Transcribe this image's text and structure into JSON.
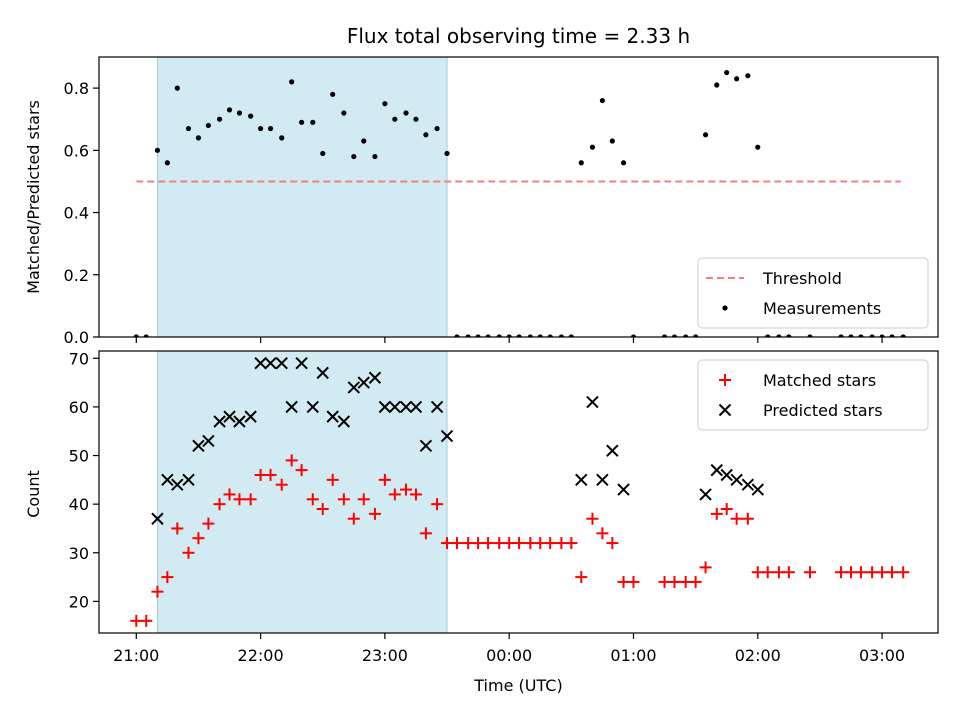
{
  "chart_data": {
    "title": "Flux total observing time = 2.33 h",
    "xlabel": "Time (UTC)",
    "x_tick_labels": [
      "21:00",
      "22:00",
      "23:00",
      "00:00",
      "01:00",
      "02:00",
      "03:00"
    ],
    "x_tick_hours": [
      21,
      22,
      23,
      24,
      25,
      26,
      27
    ],
    "xlim": [
      20.7,
      27.45
    ],
    "shaded_interval": {
      "start": 21.17,
      "end": 23.5,
      "color": "#add8e6"
    },
    "panels": [
      {
        "type": "scatter",
        "ylabel": "Matched/Predicted stars",
        "ylim": [
          0,
          0.9
        ],
        "yticks": [
          0.0,
          0.2,
          0.4,
          0.6,
          0.8
        ],
        "ytick_labels": [
          "0.0",
          "0.2",
          "0.4",
          "0.6",
          "0.8"
        ],
        "legend_position": "lower-right",
        "threshold": {
          "name": "Threshold",
          "value": 0.5,
          "x_range": [
            21.0,
            27.15
          ],
          "color": "#f08080"
        },
        "series": [
          {
            "name": "Measurements",
            "marker": "dot",
            "color": "#000000",
            "points": [
              [
                21.0,
                0.0
              ],
              [
                21.08,
                0.0
              ],
              [
                21.17,
                0.6
              ],
              [
                21.25,
                0.56
              ],
              [
                21.33,
                0.8
              ],
              [
                21.42,
                0.67
              ],
              [
                21.5,
                0.64
              ],
              [
                21.58,
                0.68
              ],
              [
                21.67,
                0.7
              ],
              [
                21.75,
                0.73
              ],
              [
                21.83,
                0.72
              ],
              [
                21.92,
                0.71
              ],
              [
                22.0,
                0.67
              ],
              [
                22.08,
                0.67
              ],
              [
                22.17,
                0.64
              ],
              [
                22.25,
                0.82
              ],
              [
                22.33,
                0.69
              ],
              [
                22.42,
                0.69
              ],
              [
                22.5,
                0.59
              ],
              [
                22.58,
                0.78
              ],
              [
                22.67,
                0.72
              ],
              [
                22.75,
                0.58
              ],
              [
                22.83,
                0.63
              ],
              [
                22.92,
                0.58
              ],
              [
                23.0,
                0.75
              ],
              [
                23.08,
                0.7
              ],
              [
                23.17,
                0.72
              ],
              [
                23.25,
                0.7
              ],
              [
                23.33,
                0.65
              ],
              [
                23.42,
                0.67
              ],
              [
                23.5,
                0.59
              ],
              [
                23.58,
                0.0
              ],
              [
                23.67,
                0.0
              ],
              [
                23.75,
                0.0
              ],
              [
                23.83,
                0.0
              ],
              [
                23.92,
                0.0
              ],
              [
                24.0,
                0.0
              ],
              [
                24.08,
                0.0
              ],
              [
                24.17,
                0.0
              ],
              [
                24.25,
                0.0
              ],
              [
                24.33,
                0.0
              ],
              [
                24.42,
                0.0
              ],
              [
                24.5,
                0.0
              ],
              [
                24.58,
                0.56
              ],
              [
                24.67,
                0.61
              ],
              [
                24.75,
                0.76
              ],
              [
                24.83,
                0.63
              ],
              [
                24.92,
                0.56
              ],
              [
                25.0,
                0.0
              ],
              [
                25.25,
                0.0
              ],
              [
                25.33,
                0.0
              ],
              [
                25.42,
                0.0
              ],
              [
                25.5,
                0.0
              ],
              [
                25.58,
                0.65
              ],
              [
                25.67,
                0.81
              ],
              [
                25.75,
                0.85
              ],
              [
                25.83,
                0.83
              ],
              [
                25.92,
                0.84
              ],
              [
                26.0,
                0.61
              ],
              [
                26.08,
                0.0
              ],
              [
                26.17,
                0.0
              ],
              [
                26.25,
                0.0
              ],
              [
                26.42,
                0.0
              ],
              [
                26.67,
                0.0
              ],
              [
                26.75,
                0.0
              ],
              [
                26.83,
                0.0
              ],
              [
                26.92,
                0.0
              ],
              [
                27.0,
                0.0
              ],
              [
                27.08,
                0.0
              ],
              [
                27.17,
                0.0
              ]
            ]
          }
        ]
      },
      {
        "type": "scatter",
        "ylabel": "Count",
        "ylim": [
          13.5,
          71.5
        ],
        "yticks": [
          20,
          30,
          40,
          50,
          60,
          70
        ],
        "ytick_labels": [
          "20",
          "30",
          "40",
          "50",
          "60",
          "70"
        ],
        "legend_position": "upper-right",
        "series": [
          {
            "name": "Matched stars",
            "marker": "plus",
            "color": "#ff0000",
            "points": [
              [
                21.0,
                16
              ],
              [
                21.08,
                16
              ],
              [
                21.17,
                22
              ],
              [
                21.25,
                25
              ],
              [
                21.33,
                35
              ],
              [
                21.42,
                30
              ],
              [
                21.5,
                33
              ],
              [
                21.58,
                36
              ],
              [
                21.67,
                40
              ],
              [
                21.75,
                42
              ],
              [
                21.83,
                41
              ],
              [
                21.92,
                41
              ],
              [
                22.0,
                46
              ],
              [
                22.08,
                46
              ],
              [
                22.17,
                44
              ],
              [
                22.25,
                49
              ],
              [
                22.33,
                47
              ],
              [
                22.42,
                41
              ],
              [
                22.5,
                39
              ],
              [
                22.58,
                45
              ],
              [
                22.67,
                41
              ],
              [
                22.75,
                37
              ],
              [
                22.83,
                41
              ],
              [
                22.92,
                38
              ],
              [
                23.0,
                45
              ],
              [
                23.08,
                42
              ],
              [
                23.17,
                43
              ],
              [
                23.25,
                42
              ],
              [
                23.33,
                34
              ],
              [
                23.42,
                40
              ],
              [
                23.5,
                32
              ],
              [
                23.58,
                32
              ],
              [
                23.67,
                32
              ],
              [
                23.75,
                32
              ],
              [
                23.83,
                32
              ],
              [
                23.92,
                32
              ],
              [
                24.0,
                32
              ],
              [
                24.08,
                32
              ],
              [
                24.17,
                32
              ],
              [
                24.25,
                32
              ],
              [
                24.33,
                32
              ],
              [
                24.42,
                32
              ],
              [
                24.5,
                32
              ],
              [
                24.58,
                25
              ],
              [
                24.67,
                37
              ],
              [
                24.75,
                34
              ],
              [
                24.83,
                32
              ],
              [
                24.92,
                24
              ],
              [
                25.0,
                24
              ],
              [
                25.25,
                24
              ],
              [
                25.33,
                24
              ],
              [
                25.42,
                24
              ],
              [
                25.5,
                24
              ],
              [
                25.58,
                27
              ],
              [
                25.67,
                38
              ],
              [
                25.75,
                39
              ],
              [
                25.83,
                37
              ],
              [
                25.92,
                37
              ],
              [
                26.0,
                26
              ],
              [
                26.08,
                26
              ],
              [
                26.17,
                26
              ],
              [
                26.25,
                26
              ],
              [
                26.42,
                26
              ],
              [
                26.67,
                26
              ],
              [
                26.75,
                26
              ],
              [
                26.83,
                26
              ],
              [
                26.92,
                26
              ],
              [
                27.0,
                26
              ],
              [
                27.08,
                26
              ],
              [
                27.17,
                26
              ]
            ]
          },
          {
            "name": "Predicted stars",
            "marker": "x",
            "color": "#000000",
            "points": [
              [
                21.17,
                37
              ],
              [
                21.25,
                45
              ],
              [
                21.33,
                44
              ],
              [
                21.42,
                45
              ],
              [
                21.5,
                52
              ],
              [
                21.58,
                53
              ],
              [
                21.67,
                57
              ],
              [
                21.75,
                58
              ],
              [
                21.83,
                57
              ],
              [
                21.92,
                58
              ],
              [
                22.0,
                69
              ],
              [
                22.08,
                69
              ],
              [
                22.17,
                69
              ],
              [
                22.25,
                60
              ],
              [
                22.33,
                69
              ],
              [
                22.42,
                60
              ],
              [
                22.5,
                67
              ],
              [
                22.58,
                58
              ],
              [
                22.67,
                57
              ],
              [
                22.75,
                64
              ],
              [
                22.83,
                65
              ],
              [
                22.92,
                66
              ],
              [
                23.0,
                60
              ],
              [
                23.08,
                60
              ],
              [
                23.17,
                60
              ],
              [
                23.25,
                60
              ],
              [
                23.33,
                52
              ],
              [
                23.42,
                60
              ],
              [
                23.5,
                54
              ],
              [
                24.58,
                45
              ],
              [
                24.67,
                61
              ],
              [
                24.75,
                45
              ],
              [
                24.83,
                51
              ],
              [
                24.92,
                43
              ],
              [
                25.58,
                42
              ],
              [
                25.67,
                47
              ],
              [
                25.75,
                46
              ],
              [
                25.83,
                45
              ],
              [
                25.92,
                44
              ],
              [
                26.0,
                43
              ]
            ]
          }
        ]
      }
    ]
  }
}
